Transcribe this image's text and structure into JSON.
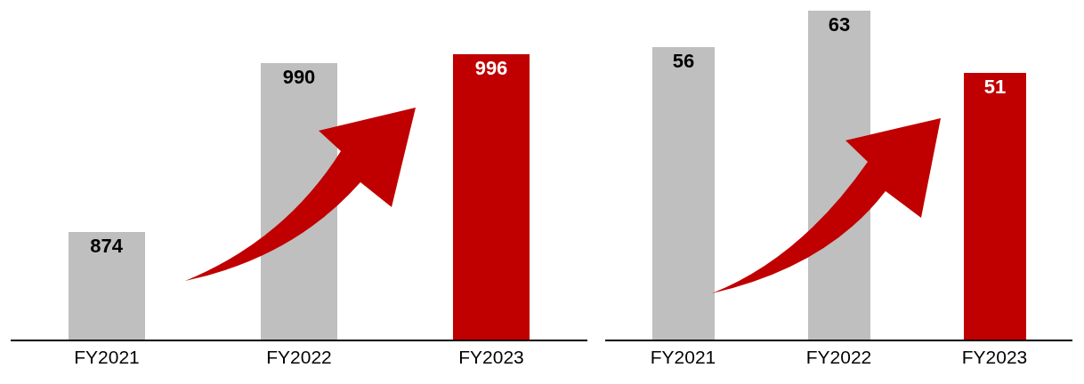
{
  "chart_data": [
    {
      "type": "bar",
      "categories": [
        "FY2021",
        "FY2022",
        "FY2023"
      ],
      "values": [
        874,
        990,
        996
      ],
      "colors": [
        "#bfbfbf",
        "#bfbfbf",
        "#c00000"
      ],
      "data_labels": true,
      "ylim": [
        800,
        1033
      ],
      "tick_labels": "x"
    },
    {
      "type": "bar",
      "categories": [
        "FY2021",
        "FY2022",
        "FY2023"
      ],
      "values": [
        56,
        63,
        51
      ],
      "colors": [
        "#bfbfbf",
        "#bfbfbf",
        "#c00000"
      ],
      "data_labels": true,
      "ylim": [
        0,
        65
      ],
      "tick_labels": "x"
    }
  ]
}
